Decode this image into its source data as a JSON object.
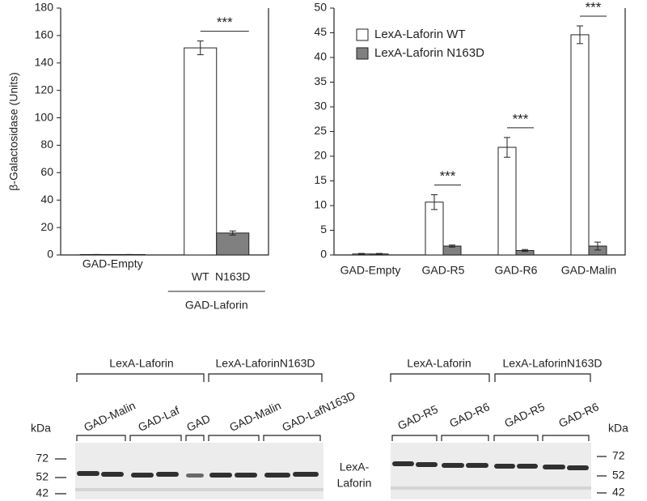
{
  "chart_data": [
    {
      "type": "bar",
      "y_label": "β-Galactosidase (Units)",
      "categories": [
        "GAD-Empty",
        "GAD-Laforin"
      ],
      "group_sublabels": {
        "category": 1,
        "labels": [
          "WT",
          "N163D"
        ]
      },
      "series": [
        {
          "color": "#ffffff",
          "values": [
            0.3,
            151
          ],
          "errors": [
            0.1,
            5
          ]
        },
        {
          "color": "#808080",
          "values": [
            0.3,
            16
          ],
          "errors": [
            0.1,
            1.5
          ]
        }
      ],
      "ylim": [
        0,
        180
      ],
      "yticks": [
        0,
        20,
        40,
        60,
        80,
        100,
        120,
        140,
        160,
        180
      ],
      "annotations": [
        {
          "text": "***",
          "category": 1
        }
      ]
    },
    {
      "type": "bar",
      "categories": [
        "GAD-Empty",
        "GAD-R5",
        "GAD-R6",
        "GAD-Malin"
      ],
      "series": [
        {
          "name": "LexA-Laforin WT",
          "color": "#ffffff",
          "values": [
            0.2,
            10.7,
            21.8,
            44.6
          ],
          "errors": [
            0.1,
            1.5,
            2,
            1.8
          ]
        },
        {
          "name": "LexA-Laforin N163D",
          "color": "#808080",
          "values": [
            0.2,
            1.8,
            0.9,
            1.8
          ],
          "errors": [
            0.1,
            0.2,
            0.2,
            0.8
          ]
        }
      ],
      "ylim": [
        0,
        50
      ],
      "yticks": [
        0,
        5,
        10,
        15,
        20,
        25,
        30,
        35,
        40,
        45,
        50
      ],
      "legend": "upper left",
      "annotations": [
        {
          "text": "***",
          "category": 1
        },
        {
          "text": "***",
          "category": 2
        },
        {
          "text": "***",
          "category": 3
        }
      ]
    }
  ],
  "blot": {
    "left": {
      "headers": [
        "LexA-Laforin",
        "LexA-LaforinN163D"
      ],
      "lanes": [
        "GAD-Malin",
        "GAD-Laf",
        "GAD",
        "GAD-Malin",
        "GAD-LafN163D"
      ],
      "unit": "kDa",
      "markers": [
        72,
        52,
        42
      ]
    },
    "center_label": [
      "LexA-",
      "Laforin"
    ],
    "right": {
      "headers": [
        "LexA-Laforin",
        "LexA-LaforinN163D"
      ],
      "lanes": [
        "GAD-R5",
        "GAD-R6",
        "GAD-R5",
        "GAD-R6"
      ],
      "unit": "kDa",
      "markers": [
        72,
        52,
        42
      ]
    }
  }
}
